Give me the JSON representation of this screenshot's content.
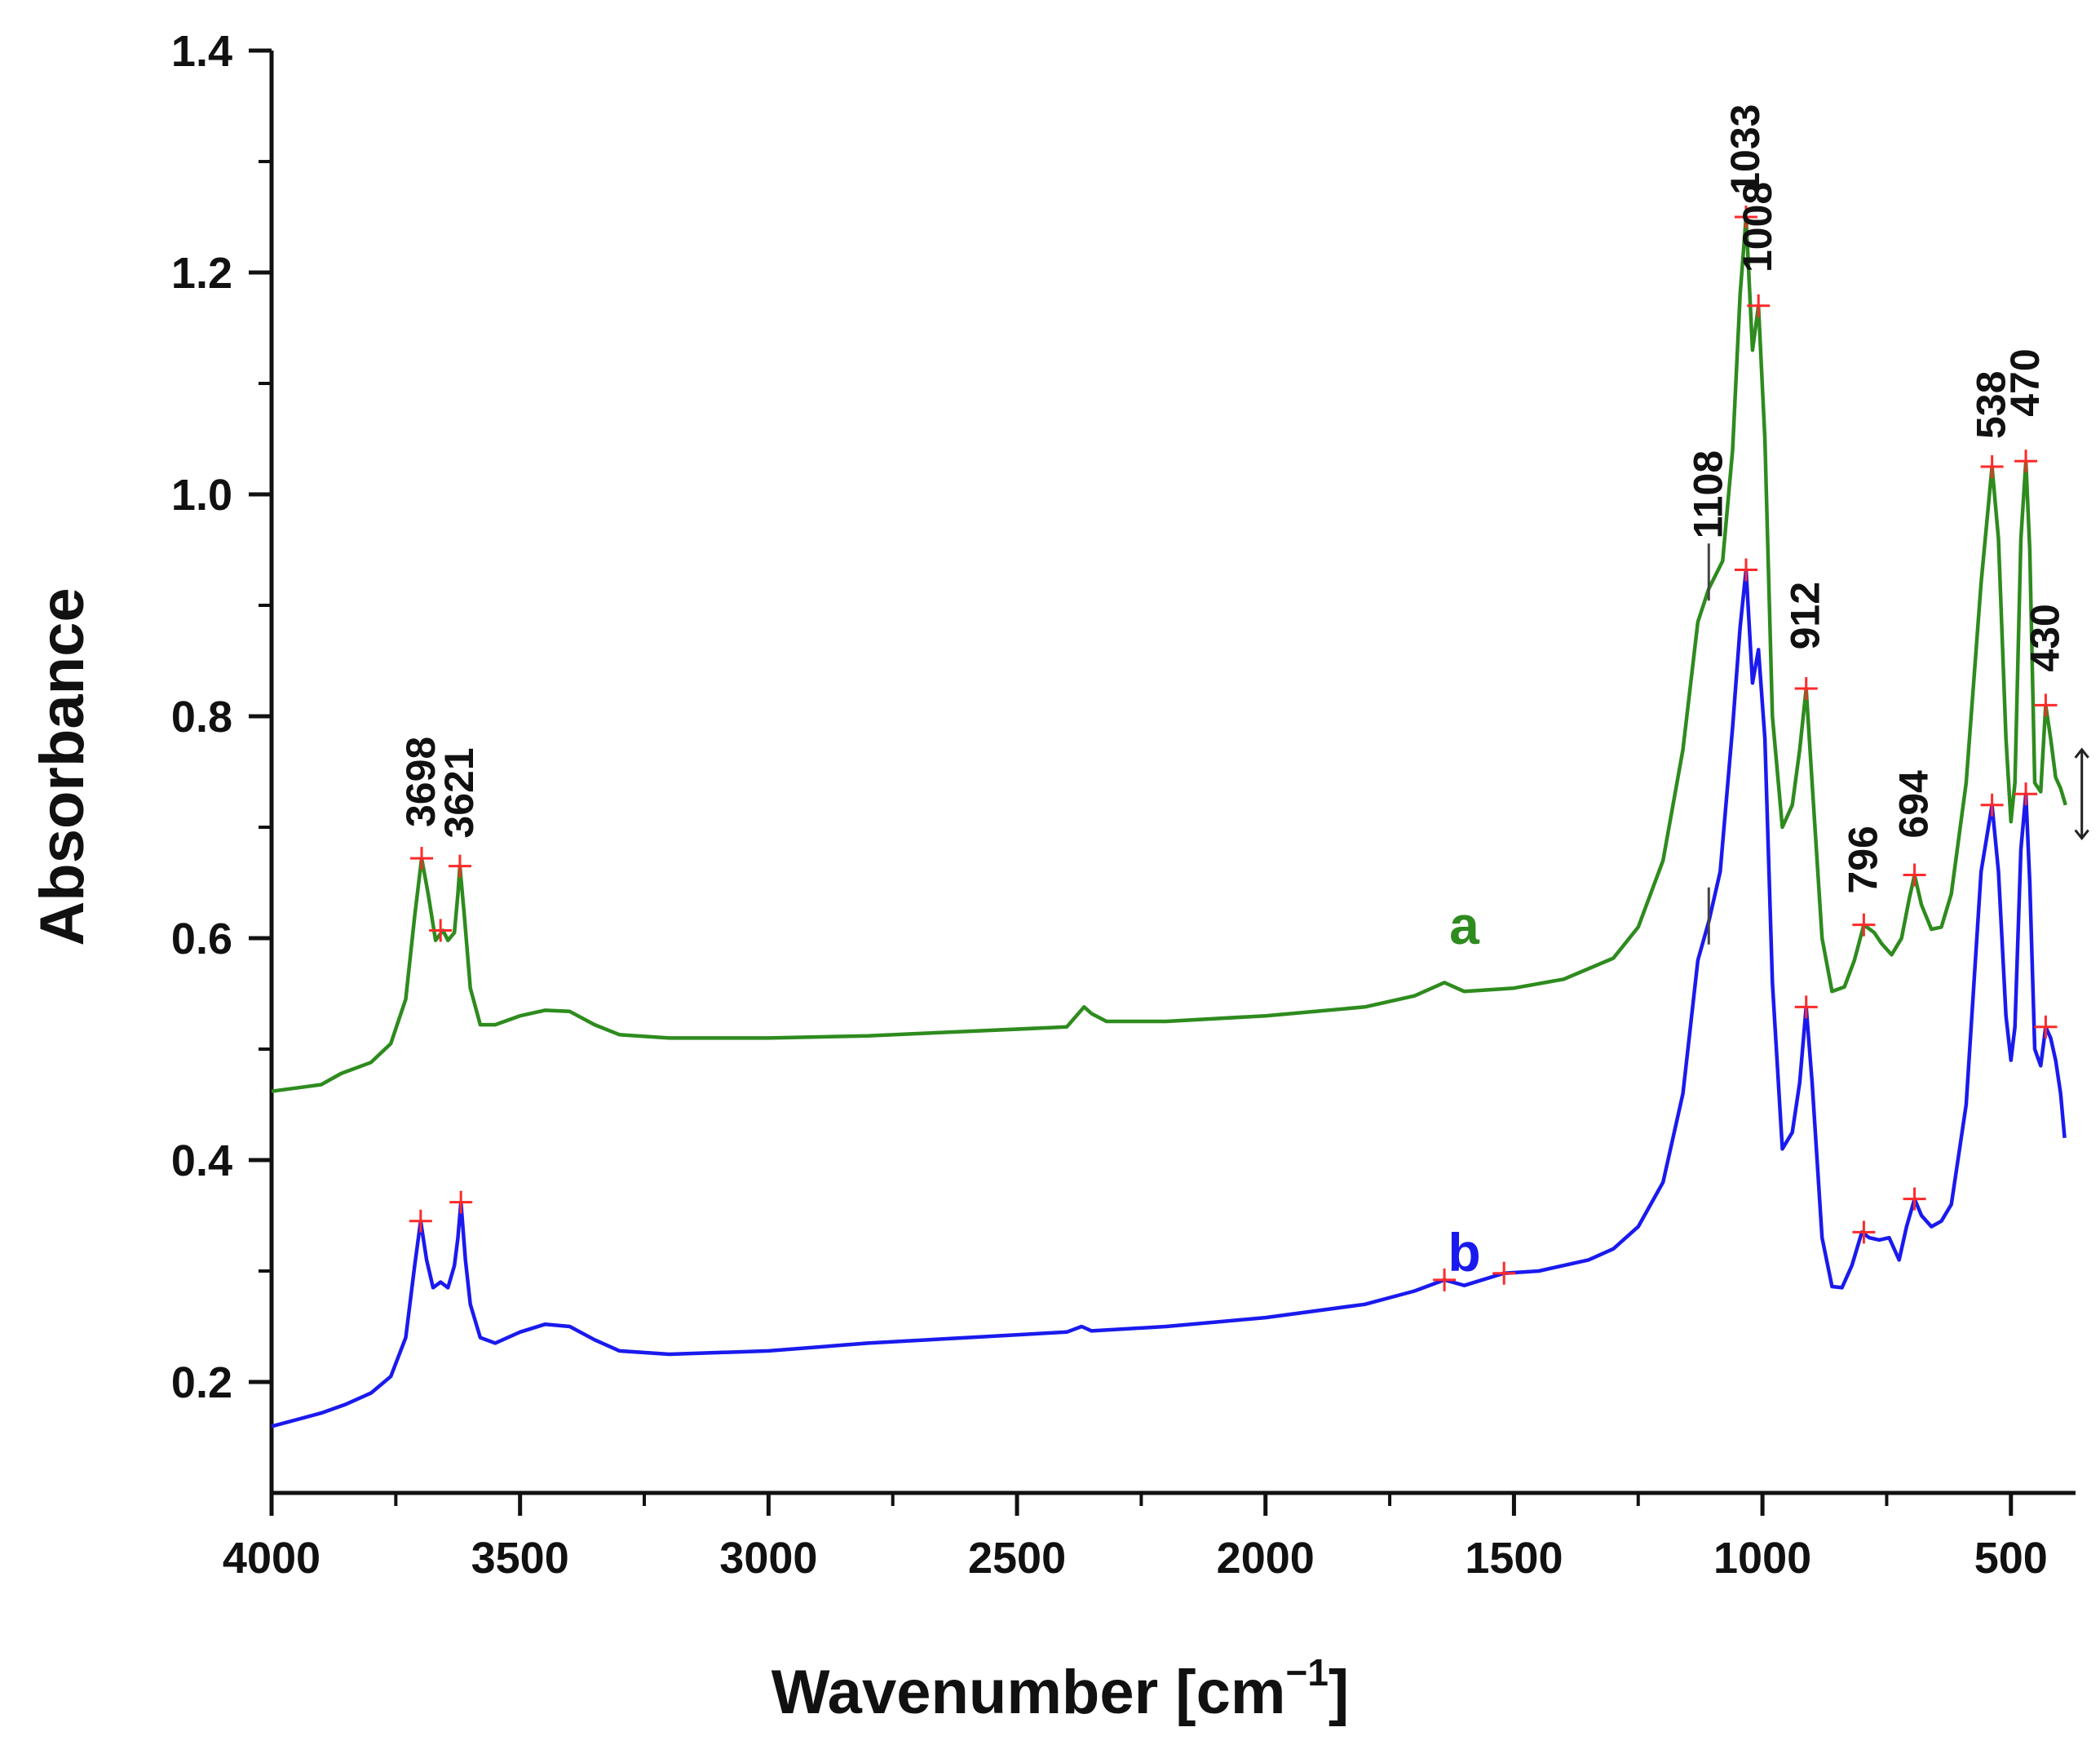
{
  "chart_data": {
    "type": "line",
    "title": "",
    "xlabel": "Wavenumber [cm",
    "xlabel_sup": "−1",
    "xlabel_close": "]",
    "ylabel": "Absorbance",
    "xlim": [
      4000,
      370
    ],
    "ylim": [
      0.1,
      1.4
    ],
    "xticks": [
      4000,
      3500,
      3000,
      2500,
      2000,
      1500,
      1000,
      500
    ],
    "xtick_labels": [
      "4000",
      "3500",
      "3000",
      "2500",
      "2000",
      "1500",
      "1000",
      "500"
    ],
    "yticks": [
      0.2,
      0.4,
      0.6,
      0.8,
      1.0,
      1.2,
      1.4
    ],
    "ytick_labels": [
      "0.2",
      "0.4",
      "0.6",
      "0.8",
      "1.0",
      "1.2",
      "1.4"
    ],
    "series": [
      {
        "name": "a",
        "color": "#2e8b1e",
        "label_pos": [
          1600,
          0.595
        ],
        "points": [
          [
            4000,
            0.462
          ],
          [
            3900,
            0.468
          ],
          [
            3860,
            0.478
          ],
          [
            3800,
            0.488
          ],
          [
            3760,
            0.505
          ],
          [
            3730,
            0.545
          ],
          [
            3712,
            0.62
          ],
          [
            3698,
            0.672
          ],
          [
            3685,
            0.64
          ],
          [
            3670,
            0.598
          ],
          [
            3655,
            0.607
          ],
          [
            3645,
            0.598
          ],
          [
            3632,
            0.605
          ],
          [
            3625,
            0.64
          ],
          [
            3621,
            0.665
          ],
          [
            3612,
            0.62
          ],
          [
            3600,
            0.555
          ],
          [
            3580,
            0.522
          ],
          [
            3550,
            0.522
          ],
          [
            3500,
            0.53
          ],
          [
            3450,
            0.535
          ],
          [
            3400,
            0.534
          ],
          [
            3350,
            0.522
          ],
          [
            3300,
            0.513
          ],
          [
            3200,
            0.51
          ],
          [
            3000,
            0.51
          ],
          [
            2800,
            0.512
          ],
          [
            2600,
            0.516
          ],
          [
            2400,
            0.52
          ],
          [
            2365,
            0.538
          ],
          [
            2350,
            0.532
          ],
          [
            2320,
            0.525
          ],
          [
            2200,
            0.525
          ],
          [
            2000,
            0.53
          ],
          [
            1800,
            0.538
          ],
          [
            1700,
            0.548
          ],
          [
            1640,
            0.56
          ],
          [
            1600,
            0.552
          ],
          [
            1500,
            0.555
          ],
          [
            1400,
            0.563
          ],
          [
            1300,
            0.582
          ],
          [
            1250,
            0.61
          ],
          [
            1200,
            0.67
          ],
          [
            1160,
            0.77
          ],
          [
            1130,
            0.885
          ],
          [
            1108,
            0.915
          ],
          [
            1080,
            0.94
          ],
          [
            1060,
            1.04
          ],
          [
            1045,
            1.18
          ],
          [
            1033,
            1.25
          ],
          [
            1020,
            1.13
          ],
          [
            1008,
            1.17
          ],
          [
            995,
            1.05
          ],
          [
            980,
            0.8
          ],
          [
            960,
            0.7
          ],
          [
            940,
            0.72
          ],
          [
            925,
            0.77
          ],
          [
            912,
            0.825
          ],
          [
            900,
            0.74
          ],
          [
            880,
            0.6
          ],
          [
            860,
            0.552
          ],
          [
            835,
            0.556
          ],
          [
            815,
            0.58
          ],
          [
            796,
            0.612
          ],
          [
            775,
            0.605
          ],
          [
            760,
            0.595
          ],
          [
            740,
            0.585
          ],
          [
            720,
            0.6
          ],
          [
            705,
            0.635
          ],
          [
            694,
            0.657
          ],
          [
            680,
            0.63
          ],
          [
            660,
            0.608
          ],
          [
            640,
            0.61
          ],
          [
            620,
            0.64
          ],
          [
            590,
            0.74
          ],
          [
            560,
            0.92
          ],
          [
            538,
            1.025
          ],
          [
            525,
            0.96
          ],
          [
            510,
            0.78
          ],
          [
            500,
            0.705
          ],
          [
            492,
            0.74
          ],
          [
            480,
            0.96
          ],
          [
            470,
            1.03
          ],
          [
            462,
            0.95
          ],
          [
            452,
            0.74
          ],
          [
            440,
            0.732
          ],
          [
            430,
            0.81
          ],
          [
            420,
            0.78
          ],
          [
            410,
            0.745
          ],
          [
            400,
            0.735
          ],
          [
            390,
            0.72
          ]
        ],
        "markers": [
          [
            3698,
            0.672
          ],
          [
            3660,
            0.607
          ],
          [
            3621,
            0.665
          ],
          [
            1033,
            1.25
          ],
          [
            1008,
            1.17
          ],
          [
            912,
            0.825
          ],
          [
            796,
            0.612
          ],
          [
            694,
            0.657
          ],
          [
            538,
            1.025
          ],
          [
            470,
            1.03
          ],
          [
            430,
            0.81
          ]
        ]
      },
      {
        "name": "b",
        "color": "#1a1aee",
        "label_pos": [
          1600,
          0.3
        ],
        "points": [
          [
            4000,
            0.16
          ],
          [
            3900,
            0.172
          ],
          [
            3850,
            0.18
          ],
          [
            3800,
            0.19
          ],
          [
            3760,
            0.205
          ],
          [
            3730,
            0.24
          ],
          [
            3712,
            0.305
          ],
          [
            3700,
            0.345
          ],
          [
            3688,
            0.31
          ],
          [
            3675,
            0.285
          ],
          [
            3660,
            0.29
          ],
          [
            3645,
            0.285
          ],
          [
            3632,
            0.305
          ],
          [
            3625,
            0.33
          ],
          [
            3619,
            0.362
          ],
          [
            3610,
            0.31
          ],
          [
            3600,
            0.27
          ],
          [
            3580,
            0.24
          ],
          [
            3550,
            0.235
          ],
          [
            3500,
            0.245
          ],
          [
            3450,
            0.252
          ],
          [
            3400,
            0.25
          ],
          [
            3350,
            0.238
          ],
          [
            3300,
            0.228
          ],
          [
            3200,
            0.225
          ],
          [
            3000,
            0.228
          ],
          [
            2800,
            0.235
          ],
          [
            2600,
            0.24
          ],
          [
            2400,
            0.245
          ],
          [
            2370,
            0.25
          ],
          [
            2350,
            0.246
          ],
          [
            2200,
            0.25
          ],
          [
            2000,
            0.258
          ],
          [
            1800,
            0.27
          ],
          [
            1700,
            0.282
          ],
          [
            1640,
            0.292
          ],
          [
            1600,
            0.287
          ],
          [
            1520,
            0.298
          ],
          [
            1450,
            0.3
          ],
          [
            1350,
            0.31
          ],
          [
            1300,
            0.32
          ],
          [
            1250,
            0.34
          ],
          [
            1200,
            0.38
          ],
          [
            1160,
            0.46
          ],
          [
            1130,
            0.58
          ],
          [
            1108,
            0.615
          ],
          [
            1085,
            0.66
          ],
          [
            1060,
            0.79
          ],
          [
            1045,
            0.88
          ],
          [
            1033,
            0.932
          ],
          [
            1020,
            0.83
          ],
          [
            1008,
            0.86
          ],
          [
            995,
            0.78
          ],
          [
            980,
            0.56
          ],
          [
            960,
            0.41
          ],
          [
            940,
            0.425
          ],
          [
            925,
            0.47
          ],
          [
            912,
            0.538
          ],
          [
            900,
            0.47
          ],
          [
            880,
            0.33
          ],
          [
            860,
            0.286
          ],
          [
            840,
            0.285
          ],
          [
            820,
            0.305
          ],
          [
            800,
            0.335
          ],
          [
            785,
            0.33
          ],
          [
            765,
            0.328
          ],
          [
            745,
            0.33
          ],
          [
            725,
            0.31
          ],
          [
            710,
            0.34
          ],
          [
            694,
            0.365
          ],
          [
            680,
            0.35
          ],
          [
            660,
            0.34
          ],
          [
            640,
            0.345
          ],
          [
            620,
            0.36
          ],
          [
            590,
            0.45
          ],
          [
            560,
            0.66
          ],
          [
            538,
            0.72
          ],
          [
            525,
            0.66
          ],
          [
            510,
            0.53
          ],
          [
            500,
            0.49
          ],
          [
            492,
            0.52
          ],
          [
            480,
            0.68
          ],
          [
            470,
            0.73
          ],
          [
            462,
            0.65
          ],
          [
            452,
            0.5
          ],
          [
            440,
            0.485
          ],
          [
            430,
            0.52
          ],
          [
            420,
            0.51
          ],
          [
            410,
            0.49
          ],
          [
            400,
            0.46
          ],
          [
            392,
            0.42
          ]
        ],
        "markers": [
          [
            3700,
            0.345
          ],
          [
            3619,
            0.362
          ],
          [
            1640,
            0.292
          ],
          [
            1520,
            0.298
          ],
          [
            1033,
            0.932
          ],
          [
            912,
            0.538
          ],
          [
            796,
            0.335
          ],
          [
            694,
            0.365
          ],
          [
            538,
            0.72
          ],
          [
            470,
            0.73
          ],
          [
            430,
            0.52
          ]
        ]
      }
    ],
    "peak_labels": [
      {
        "text": "3698",
        "x": 3698,
        "y": 0.7
      },
      {
        "text": "3621",
        "x": 3621,
        "y": 0.69
      },
      {
        "text": "1108",
        "x": 1108,
        "y": 0.96
      },
      {
        "text": "1008",
        "x": 1008,
        "y": 1.2
      },
      {
        "text": "1033",
        "x": 1033,
        "y": 1.27
      },
      {
        "text": "912",
        "x": 912,
        "y": 0.86
      },
      {
        "text": "796",
        "x": 796,
        "y": 0.64
      },
      {
        "text": "694",
        "x": 694,
        "y": 0.69
      },
      {
        "text": "538",
        "x": 538,
        "y": 1.05
      },
      {
        "text": "470",
        "x": 470,
        "y": 1.07
      },
      {
        "text": "430",
        "x": 430,
        "y": 0.84
      }
    ],
    "shoulder_ticks": [
      [
        1108,
        0.93
      ],
      [
        1108,
        0.62
      ]
    ],
    "marker_color": "#ff2a2a",
    "axis_color": "#111111"
  }
}
